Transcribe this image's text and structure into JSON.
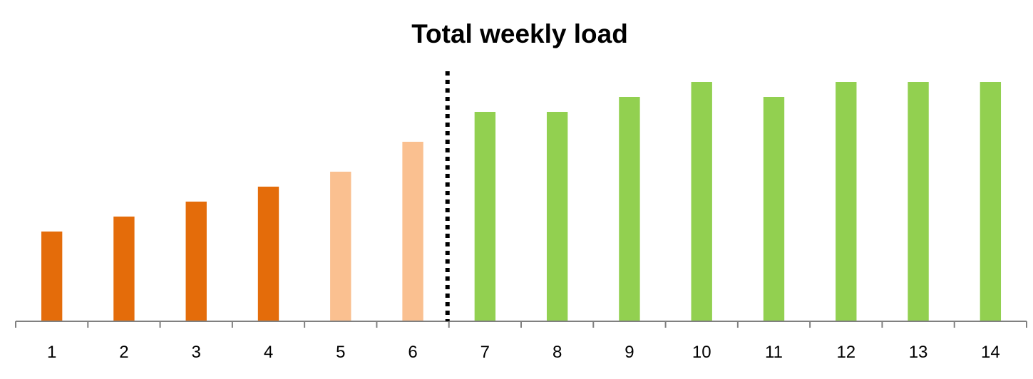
{
  "chart_data": {
    "type": "bar",
    "title": "Total weekly load",
    "xlabel": "",
    "ylabel": "",
    "categories": [
      "1",
      "2",
      "3",
      "4",
      "5",
      "6",
      "7",
      "8",
      "9",
      "10",
      "11",
      "12",
      "13",
      "14"
    ],
    "values": [
      30,
      35,
      40,
      45,
      50,
      60,
      70,
      70,
      75,
      80,
      75,
      80,
      80,
      80
    ],
    "bar_colors": [
      "#E46C0A",
      "#E46C0A",
      "#E46C0A",
      "#E46C0A",
      "#FAC090",
      "#FAC090",
      "#92D050",
      "#92D050",
      "#92D050",
      "#92D050",
      "#92D050",
      "#92D050",
      "#92D050",
      "#92D050"
    ],
    "ylim": [
      0,
      105
    ],
    "grid": false,
    "legend": "none",
    "divider_after_category": "6",
    "divider_color": "#000000",
    "axis_color": "#808080"
  }
}
